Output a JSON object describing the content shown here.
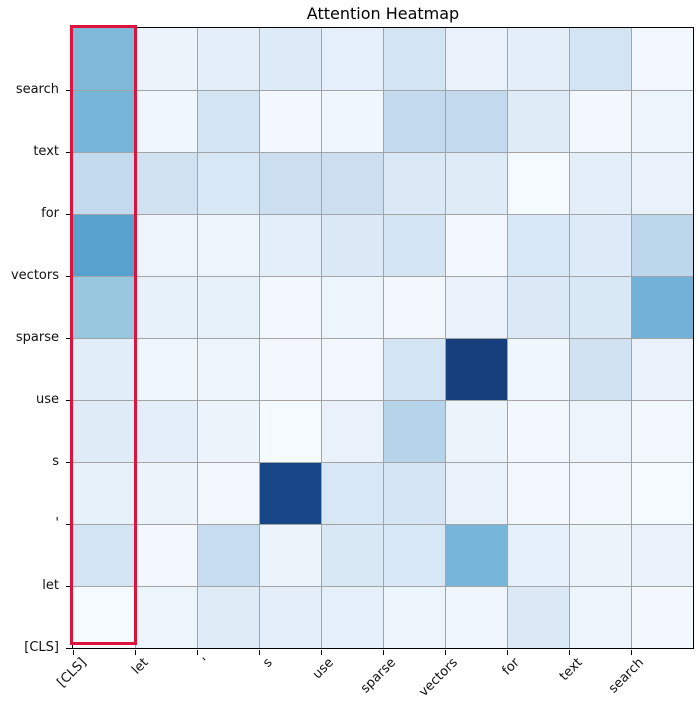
{
  "figure": {
    "title": "Attention Heatmap",
    "background_color": "#ffffff",
    "spine_color": "#000000",
    "highlight": {
      "shape": "rectangle",
      "highlighted_column": "[CLS]",
      "color": "#dc143c"
    }
  },
  "chart_data": {
    "type": "heatmap",
    "title": "Attention Heatmap",
    "colormap": "Blues",
    "value_range": [
      0,
      1
    ],
    "grid": true,
    "grid_color": "#a4a4a4",
    "legend_position": "none",
    "x_labels": [
      "[CLS]",
      "let",
      "'",
      "s",
      "use",
      "sparse",
      "vectors",
      "for",
      "text",
      "search"
    ],
    "y_labels": [
      "search",
      "text",
      "for",
      "vectors",
      "sparse",
      "use",
      "s",
      "'",
      "let",
      "[CLS]"
    ],
    "x_label_rotation_deg": 45,
    "values": [
      [
        0.45,
        0.06,
        0.1,
        0.13,
        0.09,
        0.18,
        0.07,
        0.1,
        0.18,
        0.02
      ],
      [
        0.47,
        0.04,
        0.18,
        0.02,
        0.04,
        0.26,
        0.26,
        0.12,
        0.02,
        0.05
      ],
      [
        0.26,
        0.2,
        0.16,
        0.22,
        0.22,
        0.14,
        0.12,
        0.01,
        0.1,
        0.07
      ],
      [
        0.56,
        0.05,
        0.05,
        0.1,
        0.14,
        0.18,
        0.02,
        0.16,
        0.13,
        0.28
      ],
      [
        0.39,
        0.08,
        0.08,
        0.03,
        0.05,
        0.03,
        0.07,
        0.14,
        0.15,
        0.48
      ],
      [
        0.11,
        0.04,
        0.05,
        0.03,
        0.02,
        0.18,
        0.95,
        0.04,
        0.2,
        0.07
      ],
      [
        0.12,
        0.1,
        0.06,
        0.01,
        0.07,
        0.3,
        0.06,
        0.03,
        0.05,
        0.03
      ],
      [
        0.08,
        0.06,
        0.03,
        0.92,
        0.16,
        0.17,
        0.07,
        0.03,
        0.02,
        0.01
      ],
      [
        0.18,
        0.02,
        0.24,
        0.06,
        0.15,
        0.16,
        0.47,
        0.09,
        0.06,
        0.07
      ],
      [
        0.01,
        0.05,
        0.12,
        0.1,
        0.09,
        0.05,
        0.04,
        0.14,
        0.05,
        0.02
      ]
    ],
    "colormap_stops": [
      [
        0.0,
        [
          247,
          251,
          255
        ]
      ],
      [
        0.125,
        [
          222,
          235,
          247
        ]
      ],
      [
        0.25,
        [
          198,
          219,
          239
        ]
      ],
      [
        0.375,
        [
          158,
          202,
          225
        ]
      ],
      [
        0.5,
        [
          107,
          174,
          214
        ]
      ],
      [
        0.625,
        [
          66,
          146,
          198
        ]
      ],
      [
        0.75,
        [
          33,
          113,
          181
        ]
      ],
      [
        0.875,
        [
          23,
          80,
          149
        ]
      ],
      [
        1.0,
        [
          22,
          52,
          106
        ]
      ]
    ]
  }
}
